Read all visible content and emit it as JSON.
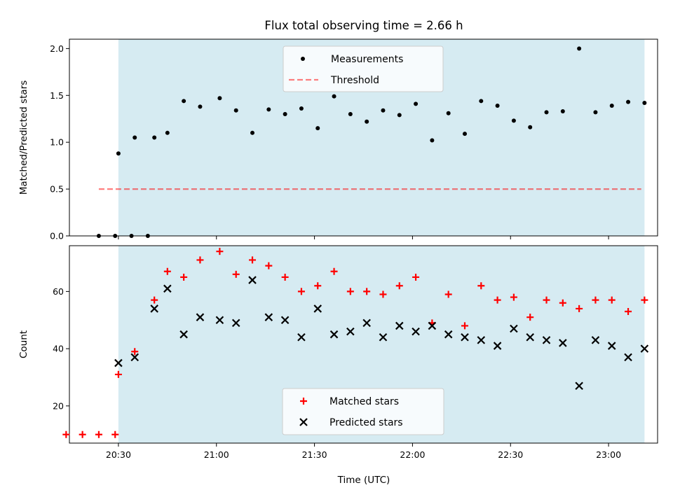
{
  "title": "Flux total observing time = 2.66 h",
  "colors": {
    "shade": "#add8e6",
    "threshold": "#ff0000",
    "measurement": "#000000",
    "matched": "#ff0000",
    "predicted": "#000000"
  },
  "chart_data": [
    {
      "type": "scatter",
      "ylabel": "Matched/Predicted stars",
      "xlabel": "",
      "ylim": [
        0,
        2.1
      ],
      "yticks": [
        "0.0",
        "0.5",
        "1.0",
        "1.5",
        "2.0"
      ],
      "xlim": [
        "20:15",
        "23:15"
      ],
      "grid": false,
      "legend": [
        "Measurements",
        "Threshold"
      ],
      "legend_position": "top-center",
      "shaded_span": [
        "20:30",
        "23:11"
      ],
      "threshold": {
        "name": "Threshold",
        "value": 0.5,
        "x": [
          "20:24",
          "23:10"
        ]
      },
      "series": [
        {
          "name": "Measurements",
          "marker": "dot",
          "x": [
            "20:24",
            "20:29",
            "20:34",
            "20:39",
            "20:30",
            "20:35",
            "20:41",
            "20:45",
            "20:50",
            "20:55",
            "21:01",
            "21:06",
            "21:11",
            "21:16",
            "21:21",
            "21:26",
            "21:31",
            "21:36",
            "21:41",
            "21:46",
            "21:51",
            "21:56",
            "22:01",
            "22:06",
            "22:11",
            "22:16",
            "22:21",
            "22:26",
            "22:31",
            "22:36",
            "22:41",
            "22:46",
            "22:51",
            "22:56",
            "23:01",
            "23:06",
            "23:11"
          ],
          "y": [
            0,
            0,
            0,
            0,
            0.88,
            1.05,
            1.05,
            1.1,
            1.44,
            1.38,
            1.47,
            1.34,
            1.1,
            1.35,
            1.3,
            1.36,
            1.15,
            1.49,
            1.3,
            1.22,
            1.34,
            1.29,
            1.41,
            1.02,
            1.31,
            1.09,
            1.44,
            1.39,
            1.23,
            1.16,
            1.32,
            1.33,
            2.0,
            1.32,
            1.39,
            1.43,
            1.42
          ]
        }
      ]
    },
    {
      "type": "scatter",
      "ylabel": "Count",
      "xlabel": "Time (UTC)",
      "ylim": [
        7,
        76
      ],
      "yticks": [
        "20",
        "40",
        "60"
      ],
      "xticks": [
        "20:30",
        "21:00",
        "21:30",
        "22:00",
        "22:30",
        "23:00"
      ],
      "grid": false,
      "legend": [
        "Matched stars",
        "Predicted stars"
      ],
      "legend_position": "bottom-center",
      "shaded_span": [
        "20:30",
        "23:11"
      ],
      "series": [
        {
          "name": "Matched stars",
          "marker": "plus",
          "x": [
            "20:14",
            "20:19",
            "20:24",
            "20:29",
            "20:30",
            "20:35",
            "20:41",
            "20:45",
            "20:50",
            "20:55",
            "21:01",
            "21:06",
            "21:11",
            "21:16",
            "21:21",
            "21:26",
            "21:31",
            "21:36",
            "21:41",
            "21:46",
            "21:51",
            "21:56",
            "22:01",
            "22:06",
            "22:11",
            "22:16",
            "22:21",
            "22:26",
            "22:31",
            "22:36",
            "22:41",
            "22:46",
            "22:51",
            "22:56",
            "23:01",
            "23:06",
            "23:11"
          ],
          "y": [
            10,
            10,
            10,
            10,
            31,
            39,
            57,
            67,
            65,
            71,
            74,
            66,
            71,
            69,
            65,
            60,
            62,
            67,
            60,
            60,
            59,
            62,
            65,
            49,
            59,
            48,
            62,
            57,
            58,
            51,
            57,
            56,
            54,
            57,
            57,
            53,
            57
          ]
        },
        {
          "name": "Predicted stars",
          "marker": "x",
          "x": [
            "20:30",
            "20:35",
            "20:41",
            "20:45",
            "20:50",
            "20:55",
            "21:01",
            "21:06",
            "21:11",
            "21:16",
            "21:21",
            "21:26",
            "21:31",
            "21:36",
            "21:41",
            "21:46",
            "21:51",
            "21:56",
            "22:01",
            "22:06",
            "22:11",
            "22:16",
            "22:21",
            "22:26",
            "22:31",
            "22:36",
            "22:41",
            "22:46",
            "22:51",
            "22:56",
            "23:01",
            "23:06",
            "23:11"
          ],
          "y": [
            35,
            37,
            54,
            61,
            45,
            51,
            50,
            49,
            64,
            51,
            50,
            44,
            54,
            45,
            46,
            49,
            44,
            48,
            46,
            48,
            45,
            44,
            43,
            41,
            47,
            44,
            43,
            42,
            27,
            43,
            41,
            37,
            40
          ]
        }
      ]
    }
  ]
}
